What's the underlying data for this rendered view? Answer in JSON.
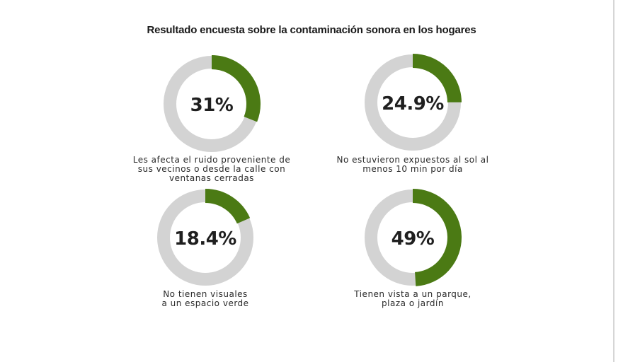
{
  "chart_data": {
    "type": "pie",
    "variant": "donut",
    "title": "Resultado encuesta sobre la contaminación sonora en los hogares",
    "colors": {
      "fill": "#4b7a14",
      "track": "#d3d3d3"
    },
    "items": [
      {
        "value": 31,
        "label": "31%",
        "caption": [
          "Les afecta el ruido proveniente de",
          "sus vecinos o desde la calle con",
          "ventanas cerradas"
        ]
      },
      {
        "value": 24.9,
        "label": "24.9%",
        "caption": [
          "No estuvieron expuestos al sol al",
          "menos 10 min por día"
        ]
      },
      {
        "value": 18.4,
        "label": "18.4%",
        "caption": [
          "No tienen visuales",
          "a un espacio verde"
        ]
      },
      {
        "value": 49,
        "label": "49%",
        "caption": [
          "Tienen vista a un parque,",
          "plaza o jardín"
        ]
      }
    ]
  }
}
